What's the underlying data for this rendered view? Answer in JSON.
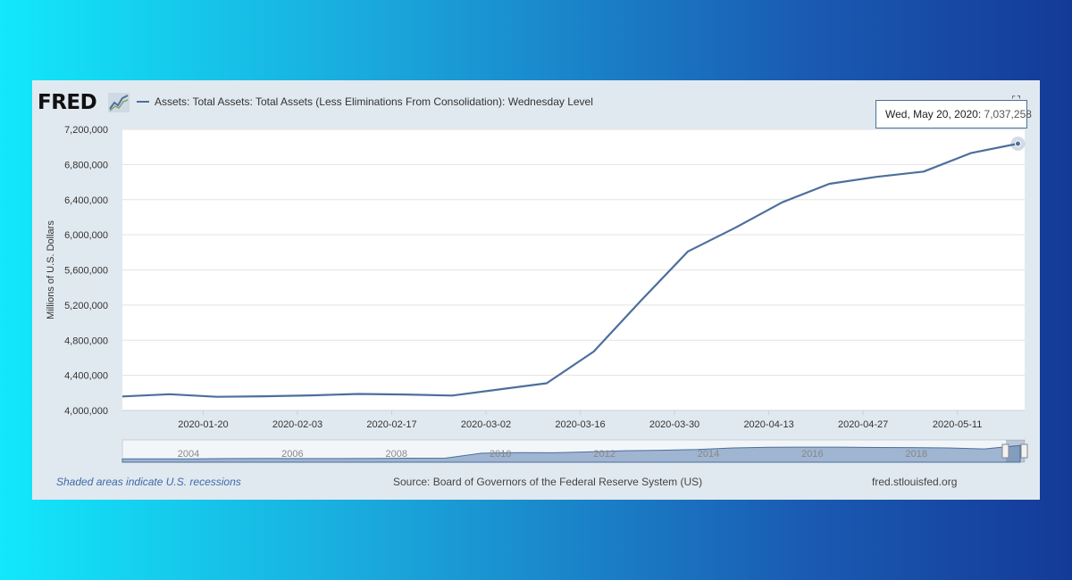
{
  "logo": {
    "text": "FRED"
  },
  "legend": {
    "series_name": "Assets: Total Assets: Total Assets (Less Eliminations From Consolidation): Wednesday Level"
  },
  "tooltip": {
    "date": "Wed, May 20, 2020:",
    "value": "7,037,258"
  },
  "footer": {
    "recession_note": "Shaded areas indicate U.S. recessions",
    "source": "Source: Board of Governors of the Federal Reserve System (US)",
    "site": "fred.stlouisfed.org"
  },
  "colors": {
    "series": "#4c6f9c",
    "navigator_fill": "#9fb5d1",
    "panel": "#e1e9f0"
  },
  "chart_data": {
    "type": "line",
    "title": "",
    "xlabel": "",
    "ylabel": "Millions of U.S. Dollars",
    "ylim": [
      4000000,
      7200000
    ],
    "yticks": [
      4000000,
      4400000,
      4800000,
      5200000,
      5600000,
      6000000,
      6400000,
      6800000,
      7200000
    ],
    "ytick_labels": [
      "4,000,000",
      "4,400,000",
      "4,800,000",
      "5,200,000",
      "5,600,000",
      "6,000,000",
      "6,400,000",
      "6,800,000",
      "7,200,000"
    ],
    "xlim": [
      "2020-01-08",
      "2020-05-21"
    ],
    "xtick_labels": [
      "2020-01-20",
      "2020-02-03",
      "2020-02-17",
      "2020-03-02",
      "2020-03-16",
      "2020-03-30",
      "2020-04-13",
      "2020-04-27",
      "2020-05-11"
    ],
    "grid": true,
    "legend_position": "top-left",
    "series": [
      {
        "name": "Assets: Total Assets: Total Assets (Less Eliminations From Consolidation): Wednesday Level",
        "x": [
          "2020-01-08",
          "2020-01-15",
          "2020-01-22",
          "2020-01-29",
          "2020-02-05",
          "2020-02-12",
          "2020-02-19",
          "2020-02-26",
          "2020-03-04",
          "2020-03-11",
          "2020-03-18",
          "2020-03-25",
          "2020-04-01",
          "2020-04-08",
          "2020-04-15",
          "2020-04-22",
          "2020-04-29",
          "2020-05-06",
          "2020-05-13",
          "2020-05-20"
        ],
        "values": [
          4160000,
          4185000,
          4155000,
          4162000,
          4172000,
          4188000,
          4182000,
          4170000,
          4240000,
          4310000,
          4670000,
          5250000,
          5810000,
          6080000,
          6370000,
          6580000,
          6660000,
          6720000,
          6930000,
          7037258
        ]
      }
    ],
    "navigator": {
      "tick_labels": [
        "2004",
        "2006",
        "2008",
        "2010",
        "2012",
        "2014",
        "2016",
        "2018"
      ]
    }
  }
}
